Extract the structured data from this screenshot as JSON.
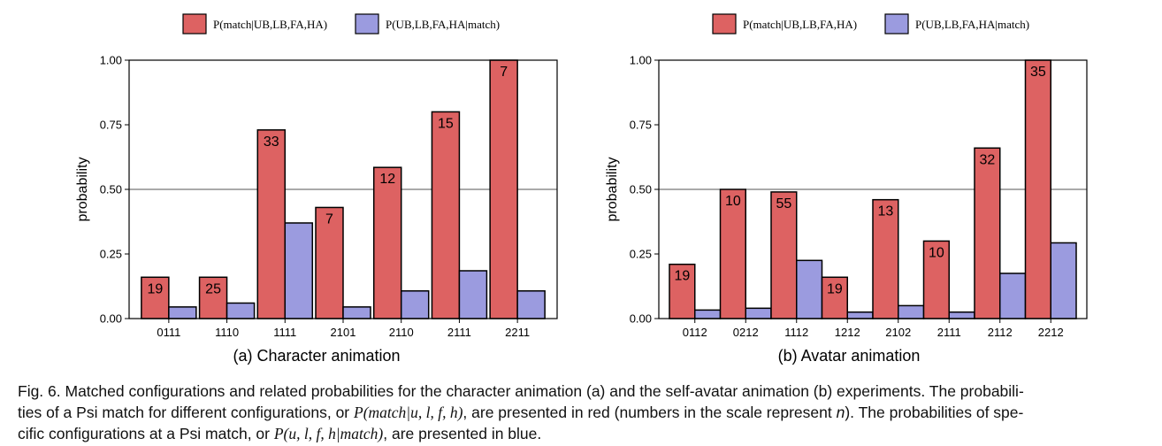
{
  "chart_data": [
    {
      "type": "bar",
      "title": "(a) Character animation",
      "xlabel": "",
      "ylabel": "probability",
      "ylim": [
        0,
        1
      ],
      "yticks": [
        "0.00",
        "0.25",
        "0.50",
        "0.75",
        "1.00"
      ],
      "reference_line": 0.5,
      "legend_placement": "top",
      "categories": [
        "0111",
        "1110",
        "1111",
        "2101",
        "2110",
        "2111",
        "2211"
      ],
      "series": [
        {
          "name": "P(match|UB,LB,FA,HA)",
          "color": "#dd6262",
          "values": [
            0.16,
            0.16,
            0.73,
            0.43,
            0.585,
            0.8,
            1.0
          ],
          "labels": [
            "19",
            "25",
            "33",
            "7",
            "12",
            "15",
            "7"
          ]
        },
        {
          "name": "P(UB,LB,FA,HA|match)",
          "color": "#9b9bdf",
          "values": [
            0.045,
            0.06,
            0.37,
            0.045,
            0.107,
            0.185,
            0.107
          ]
        }
      ]
    },
    {
      "type": "bar",
      "title": "(b) Avatar animation",
      "xlabel": "",
      "ylabel": "probability",
      "ylim": [
        0,
        1
      ],
      "yticks": [
        "0.00",
        "0.25",
        "0.50",
        "0.75",
        "1.00"
      ],
      "reference_line": 0.5,
      "legend_placement": "top",
      "categories": [
        "0112",
        "0212",
        "1112",
        "1212",
        "2102",
        "2111",
        "2112",
        "2212"
      ],
      "series": [
        {
          "name": "P(match|UB,LB,FA,HA)",
          "color": "#dd6262",
          "values": [
            0.21,
            0.5,
            0.49,
            0.16,
            0.46,
            0.3,
            0.66,
            1.0
          ],
          "labels": [
            "19",
            "10",
            "55",
            "19",
            "13",
            "10",
            "32",
            "35"
          ]
        },
        {
          "name": "P(UB,LB,FA,HA|match)",
          "color": "#9b9bdf",
          "values": [
            0.033,
            0.04,
            0.225,
            0.025,
            0.05,
            0.025,
            0.175,
            0.293
          ]
        }
      ]
    }
  ],
  "caption": {
    "p1": "Fig. 6. Matched configurations and related probabilities for the character animation (a) and the self-avatar animation (b) experiments. The probabili-",
    "p2a": "ties of a Psi match for different configurations, or ",
    "m1": "P(match|u, l, f, h)",
    "p2b": ", are presented in red (numbers in the scale represent ",
    "n": "n",
    "p2c": "). The probabilities of spe-",
    "p3a": "cific configurations at a Psi match, or ",
    "m2": "P(u, l, f, h|match)",
    "p3b": ", are presented in blue."
  }
}
